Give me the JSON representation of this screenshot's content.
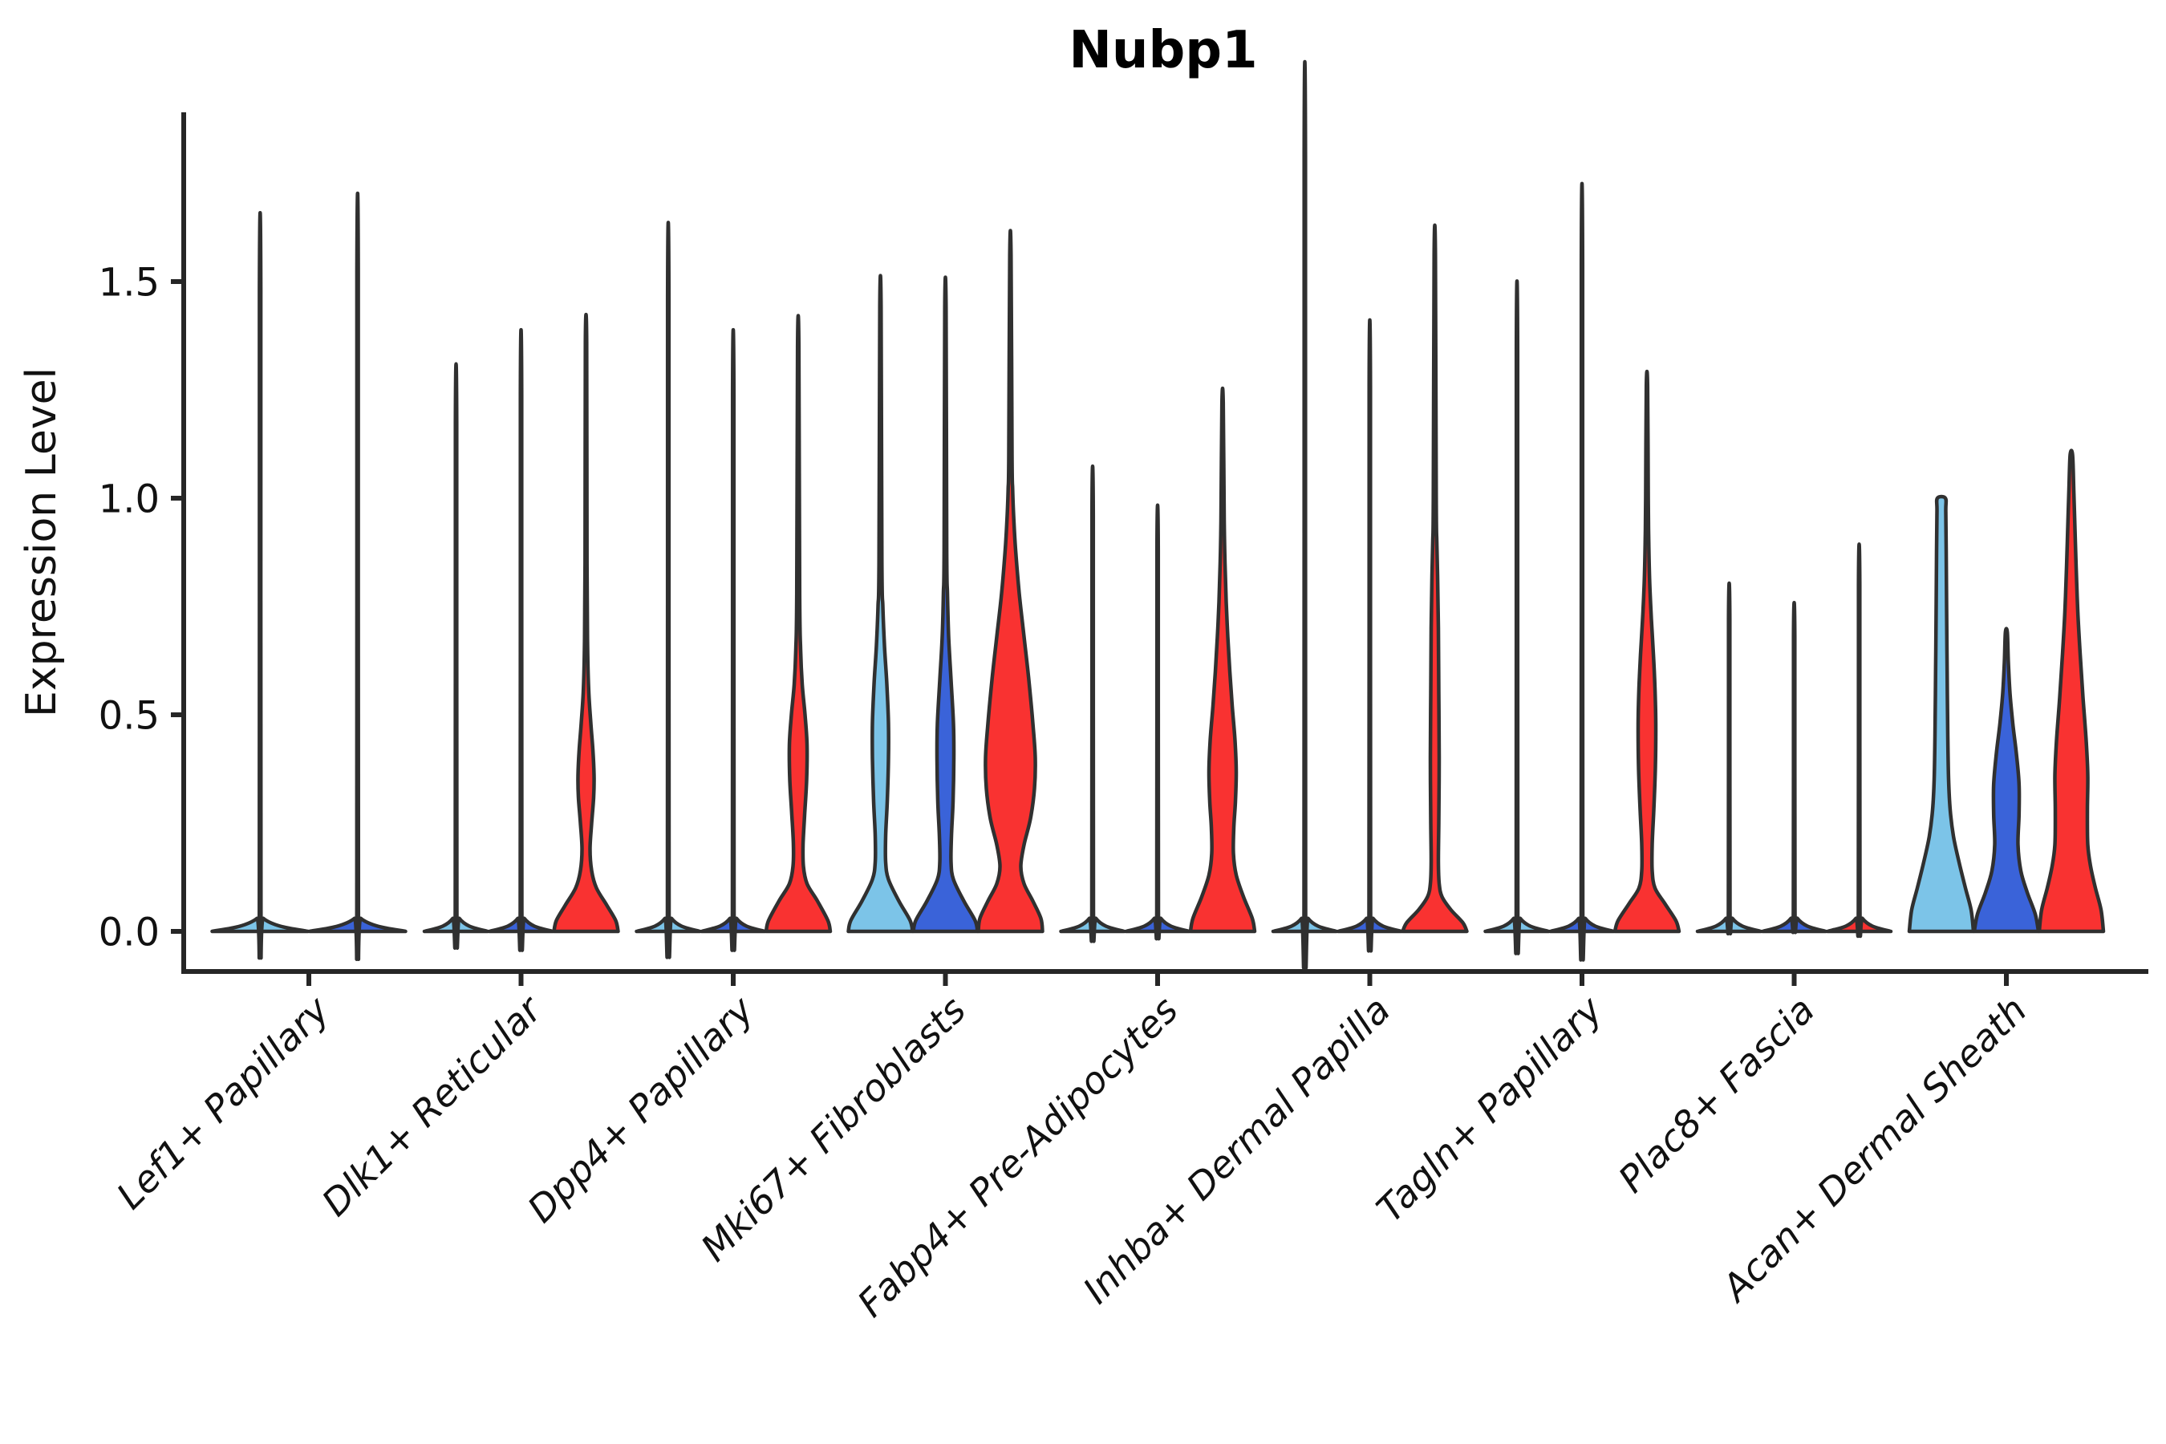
{
  "title": "Nubp1",
  "chart_data": {
    "type": "violin",
    "title": "Nubp1",
    "ylabel": "Expression Level",
    "xlabel": "",
    "yticks": [
      0.0,
      0.5,
      1.0,
      1.5
    ],
    "ytick_labels": [
      "0.0",
      "0.5",
      "1.0",
      "1.5"
    ],
    "ylim": [
      -0.09,
      1.89
    ],
    "grid": false,
    "legend": "none",
    "x_label_rotation_deg": 45,
    "axis_color": "#262626",
    "outline_color": "#303030",
    "split_colors": {
      "split1": "#7CC4E8",
      "split2": "#3A63D9",
      "split3": "#F93231"
    },
    "categories": [
      "Lef1+ Papillary",
      "Dlk1+ Reticular",
      "Dpp4+ Papillary",
      "Mki67+ Fibroblasts",
      "Fabp4+ Pre-Adipocytes",
      "Inhba+ Dermal Papilla",
      "Tagln+ Papillary",
      "Plac8+ Fascia",
      "Acan+ Dermal Sheath"
    ],
    "groups": [
      {
        "category": "Lef1+ Papillary",
        "violins": [
          {
            "split": "split1",
            "kind": "line",
            "max_expression": 1.48
          },
          {
            "split": "split2",
            "kind": "line",
            "max_expression": 1.52
          }
        ]
      },
      {
        "category": "Dlk1+ Reticular",
        "violins": [
          {
            "split": "split1",
            "kind": "line",
            "max_expression": 1.17
          },
          {
            "split": "split2",
            "kind": "line",
            "max_expression": 1.24
          },
          {
            "split": "split3",
            "kind": "shape",
            "max_expression": 1.36,
            "profile": [
              [
                0,
                40
              ],
              [
                0.025,
                37
              ],
              [
                0.06,
                26
              ],
              [
                0.1,
                13
              ],
              [
                0.14,
                7
              ],
              [
                0.19,
                5
              ],
              [
                0.25,
                7
              ],
              [
                0.31,
                9.5
              ],
              [
                0.36,
                10
              ],
              [
                0.42,
                8.5
              ],
              [
                0.48,
                6
              ],
              [
                0.55,
                3.5
              ],
              [
                0.65,
                2
              ],
              [
                0.85,
                1.2
              ],
              [
                1.36,
                0.8
              ]
            ]
          }
        ]
      },
      {
        "category": "Dpp4+ Papillary",
        "violins": [
          {
            "split": "split1",
            "kind": "line",
            "max_expression": 1.46
          },
          {
            "split": "split2",
            "kind": "line",
            "max_expression": 1.24
          },
          {
            "split": "split3",
            "kind": "shape",
            "max_expression": 1.35,
            "profile": [
              [
                0,
                40
              ],
              [
                0.025,
                37
              ],
              [
                0.07,
                24
              ],
              [
                0.11,
                11
              ],
              [
                0.15,
                6.5
              ],
              [
                0.2,
                6
              ],
              [
                0.27,
                8
              ],
              [
                0.35,
                10.5
              ],
              [
                0.43,
                11
              ],
              [
                0.5,
                8.5
              ],
              [
                0.57,
                5
              ],
              [
                0.65,
                3
              ],
              [
                0.78,
                1.8
              ],
              [
                1.35,
                0.8
              ]
            ]
          }
        ]
      },
      {
        "category": "Mki67+ Fibroblasts",
        "violins": [
          {
            "split": "split1",
            "kind": "shape",
            "max_expression": 1.44,
            "profile": [
              [
                0,
                40
              ],
              [
                0.025,
                37
              ],
              [
                0.07,
                23
              ],
              [
                0.12,
                10
              ],
              [
                0.16,
                6.5
              ],
              [
                0.22,
                6.5
              ],
              [
                0.3,
                8.5
              ],
              [
                0.4,
                10
              ],
              [
                0.48,
                10
              ],
              [
                0.57,
                8
              ],
              [
                0.66,
                5
              ],
              [
                0.75,
                3
              ],
              [
                0.85,
                1.8
              ],
              [
                1.44,
                0.8
              ]
            ]
          },
          {
            "split": "split2",
            "kind": "shape",
            "max_expression": 1.44,
            "profile": [
              [
                0,
                40
              ],
              [
                0.025,
                37
              ],
              [
                0.07,
                23
              ],
              [
                0.12,
                10
              ],
              [
                0.16,
                7
              ],
              [
                0.22,
                7.5
              ],
              [
                0.3,
                9.5
              ],
              [
                0.4,
                10.5
              ],
              [
                0.48,
                10
              ],
              [
                0.58,
                7
              ],
              [
                0.68,
                4
              ],
              [
                0.78,
                2.5
              ],
              [
                0.88,
                1.6
              ],
              [
                1.44,
                0.8
              ]
            ]
          },
          {
            "split": "split3",
            "kind": "shape",
            "max_expression": 1.56,
            "profile": [
              [
                0,
                40
              ],
              [
                0.03,
                38
              ],
              [
                0.07,
                28
              ],
              [
                0.11,
                17
              ],
              [
                0.15,
                13
              ],
              [
                0.2,
                17
              ],
              [
                0.26,
                25
              ],
              [
                0.33,
                30
              ],
              [
                0.4,
                31
              ],
              [
                0.48,
                28
              ],
              [
                0.58,
                23
              ],
              [
                0.68,
                17
              ],
              [
                0.78,
                11
              ],
              [
                0.88,
                6.5
              ],
              [
                0.96,
                4
              ],
              [
                1.02,
                2.8
              ],
              [
                1.1,
                2
              ],
              [
                1.56,
                0.8
              ]
            ]
          }
        ]
      },
      {
        "category": "Fabp4+ Pre-Adipocytes",
        "violins": [
          {
            "split": "split1",
            "kind": "line",
            "max_expression": 0.96
          },
          {
            "split": "split2",
            "kind": "line",
            "max_expression": 0.88
          },
          {
            "split": "split3",
            "kind": "shape",
            "max_expression": 1.22,
            "profile": [
              [
                0,
                40
              ],
              [
                0.03,
                37
              ],
              [
                0.08,
                26
              ],
              [
                0.13,
                17
              ],
              [
                0.18,
                13.5
              ],
              [
                0.24,
                14
              ],
              [
                0.3,
                16
              ],
              [
                0.37,
                17
              ],
              [
                0.44,
                15.5
              ],
              [
                0.52,
                12
              ],
              [
                0.6,
                9
              ],
              [
                0.68,
                6.5
              ],
              [
                0.76,
                4.5
              ],
              [
                0.85,
                3
              ],
              [
                0.95,
                2
              ],
              [
                1.22,
                0.8
              ]
            ]
          }
        ]
      },
      {
        "category": "Inhba+ Dermal Papilla",
        "violins": [
          {
            "split": "split1",
            "kind": "line",
            "max_expression": 1.79
          },
          {
            "split": "split2",
            "kind": "line",
            "max_expression": 1.26
          },
          {
            "split": "split3",
            "kind": "shape",
            "max_expression": 1.56,
            "profile": [
              [
                0,
                40
              ],
              [
                0.02,
                35
              ],
              [
                0.05,
                20
              ],
              [
                0.08,
                9
              ],
              [
                0.11,
                5.5
              ],
              [
                0.16,
                4.5
              ],
              [
                0.25,
                5
              ],
              [
                0.4,
                5.5
              ],
              [
                0.55,
                5
              ],
              [
                0.7,
                4.5
              ],
              [
                0.82,
                3.5
              ],
              [
                0.9,
                2.5
              ],
              [
                1.0,
                1.8
              ],
              [
                1.56,
                0.8
              ]
            ]
          }
        ]
      },
      {
        "category": "Tagln+ Papillary",
        "violins": [
          {
            "split": "split1",
            "kind": "line",
            "max_expression": 1.34
          },
          {
            "split": "split2",
            "kind": "line",
            "max_expression": 1.54
          },
          {
            "split": "split3",
            "kind": "shape",
            "max_expression": 1.26,
            "profile": [
              [
                0,
                40
              ],
              [
                0.025,
                36
              ],
              [
                0.065,
                22
              ],
              [
                0.1,
                10
              ],
              [
                0.14,
                6.5
              ],
              [
                0.2,
                6.5
              ],
              [
                0.28,
                8.5
              ],
              [
                0.38,
                10.5
              ],
              [
                0.48,
                11
              ],
              [
                0.56,
                10
              ],
              [
                0.64,
                8
              ],
              [
                0.72,
                5.5
              ],
              [
                0.8,
                3.5
              ],
              [
                0.9,
                2.2
              ],
              [
                1.0,
                1.6
              ],
              [
                1.26,
                0.8
              ]
            ]
          }
        ]
      },
      {
        "category": "Plac8+ Fascia",
        "violins": [
          {
            "split": "split1",
            "kind": "line",
            "max_expression": 0.72
          },
          {
            "split": "split2",
            "kind": "line",
            "max_expression": 0.68
          },
          {
            "split": "split3",
            "kind": "line",
            "max_expression": 0.8
          }
        ]
      },
      {
        "category": "Acan+ Dermal Sheath",
        "violins": [
          {
            "split": "split1",
            "kind": "shape",
            "max_expression": 1.0,
            "profile": [
              [
                0,
                40
              ],
              [
                0.05,
                37
              ],
              [
                0.1,
                30
              ],
              [
                0.16,
                22
              ],
              [
                0.22,
                15
              ],
              [
                0.28,
                11
              ],
              [
                0.35,
                9
              ],
              [
                0.45,
                8
              ],
              [
                0.6,
                7.2
              ],
              [
                0.75,
                6.5
              ],
              [
                0.88,
                6
              ],
              [
                0.97,
                5.5
              ],
              [
                1.0,
                5
              ]
            ]
          },
          {
            "split": "split2",
            "kind": "shape",
            "max_expression": 0.69,
            "profile": [
              [
                0,
                40
              ],
              [
                0.04,
                36
              ],
              [
                0.09,
                26
              ],
              [
                0.14,
                18
              ],
              [
                0.2,
                14.5
              ],
              [
                0.27,
                15.8
              ],
              [
                0.34,
                15.8
              ],
              [
                0.41,
                12.5
              ],
              [
                0.48,
                8
              ],
              [
                0.55,
                4.5
              ],
              [
                0.62,
                2.5
              ],
              [
                0.69,
                1.2
              ]
            ]
          },
          {
            "split": "split3",
            "kind": "shape",
            "max_expression": 1.1,
            "profile": [
              [
                0,
                40
              ],
              [
                0.05,
                37
              ],
              [
                0.1,
                30
              ],
              [
                0.15,
                24
              ],
              [
                0.2,
                20.5
              ],
              [
                0.28,
                20
              ],
              [
                0.36,
                20.5
              ],
              [
                0.44,
                18.5
              ],
              [
                0.54,
                14.5
              ],
              [
                0.64,
                11
              ],
              [
                0.74,
                8
              ],
              [
                0.84,
                6
              ],
              [
                0.93,
                4.5
              ],
              [
                1.02,
                3
              ],
              [
                1.1,
                1.5
              ]
            ]
          }
        ]
      }
    ]
  }
}
